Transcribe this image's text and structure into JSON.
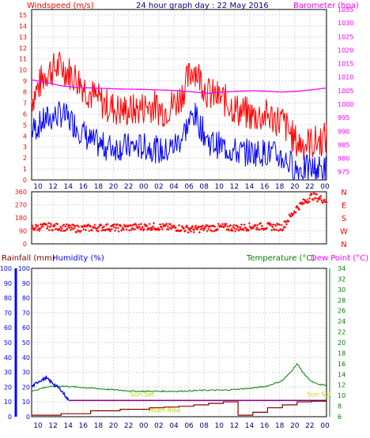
{
  "header": {
    "title": "24 hour graph day : 22 May 2016",
    "left_label": "Windspeed (m/s)",
    "right_label": "Barometer (hpa)"
  },
  "colors": {
    "wind": "#ff0000",
    "gust_fill": "#ff0000",
    "wind_avg": "#0000ff",
    "baro": "#ff00ff",
    "dir": "#ff0000",
    "title": "#000080",
    "rain": "#800000",
    "humidity": "#0000ff",
    "temp": "#008000",
    "dew": "#ff00ff",
    "sun": "#800080",
    "sunlabel": "#cccc00"
  },
  "chart_data": [
    {
      "type": "line",
      "title": "24 hour graph day : 22 May 2016",
      "x_ticks": [
        "10",
        "12",
        "14",
        "16",
        "18",
        "20",
        "22",
        "00",
        "02",
        "04",
        "06",
        "08",
        "10",
        "12",
        "14",
        "16",
        "18",
        "20",
        "22",
        "00"
      ],
      "y_left": {
        "label": "Windspeed (m/s)",
        "range": [
          0,
          15.5
        ],
        "ticks": [
          0,
          1,
          2,
          3,
          4,
          5,
          6,
          7,
          8,
          9,
          10,
          11,
          12,
          13,
          14,
          15
        ]
      },
      "y_right": {
        "label": "Barometer (hpa)",
        "range": [
          972,
          1035
        ],
        "ticks": [
          975,
          980,
          985,
          990,
          995,
          1000,
          1005,
          1010,
          1015,
          1020,
          1025,
          1030,
          1035
        ]
      },
      "series": [
        {
          "name": "Windspeed (m/s)",
          "x": [
            0,
            2,
            4,
            6,
            8,
            10,
            12,
            14,
            16,
            18,
            20,
            22,
            24,
            26,
            28,
            30,
            32,
            34,
            36,
            38,
            40
          ],
          "values": [
            7.0,
            9.5,
            10.0,
            9.0,
            7.5,
            6.5,
            6.0,
            6.0,
            6.5,
            6.0,
            7.0,
            10.0,
            7.5,
            7.0,
            6.0,
            5.5,
            5.5,
            5.0,
            3.0,
            3.0,
            3.5
          ]
        },
        {
          "name": "Average",
          "x": [
            0,
            2,
            4,
            6,
            8,
            10,
            12,
            14,
            16,
            18,
            20,
            22,
            24,
            26,
            28,
            30,
            32,
            34,
            36,
            38,
            40
          ],
          "values": [
            4.5,
            5.5,
            6.0,
            5.0,
            3.5,
            3.0,
            3.0,
            3.0,
            3.0,
            2.5,
            3.5,
            6.0,
            3.5,
            3.0,
            2.5,
            2.5,
            2.5,
            2.0,
            1.0,
            1.0,
            1.0
          ]
        },
        {
          "name": "Barometer (hpa)",
          "x": [
            0,
            2,
            4,
            6,
            8,
            10,
            12,
            14,
            16,
            18,
            20,
            22,
            24,
            26,
            28,
            30,
            32,
            34,
            36,
            38,
            40
          ],
          "values": [
            1009.0,
            1008.0,
            1006.8,
            1006.2,
            1006.0,
            1005.8,
            1005.6,
            1005.5,
            1005.4,
            1005.2,
            1005.0,
            1004.5,
            1004.0,
            1004.5,
            1004.8,
            1005.0,
            1004.8,
            1004.5,
            1004.8,
            1005.3,
            1006.0
          ]
        }
      ]
    },
    {
      "type": "scatter",
      "title": "",
      "y_left": {
        "range": [
          0,
          360
        ],
        "ticks": [
          0,
          90,
          180,
          270,
          360
        ]
      },
      "y_right_labels": [
        "N",
        "W",
        "S",
        "E",
        "N"
      ],
      "series": [
        {
          "name": "Wind direction",
          "x": [
            0,
            2,
            4,
            6,
            8,
            10,
            12,
            14,
            16,
            18,
            20,
            22,
            24,
            26,
            28,
            30,
            32,
            34,
            36,
            38,
            40
          ],
          "values": [
            110,
            120,
            115,
            105,
            110,
            115,
            110,
            115,
            120,
            115,
            110,
            100,
            110,
            115,
            110,
            120,
            120,
            115,
            250,
            330,
            300
          ]
        }
      ]
    },
    {
      "type": "line",
      "title": "",
      "y_left": {
        "label": "Rainfall (mm)",
        "range": [
          0,
          100
        ],
        "ticks": [
          0,
          10,
          20,
          30,
          40,
          50,
          60,
          70,
          80,
          90,
          100
        ]
      },
      "y_left2": {
        "label": "Humidity (%)",
        "range": [
          0,
          100
        ],
        "ticks": [
          0,
          10,
          20,
          30,
          40,
          50,
          60,
          70,
          80,
          90,
          100
        ]
      },
      "y_right": {
        "label": "Temperature (°C)",
        "label2": "Dew Point (°C)",
        "range": [
          6,
          34
        ],
        "ticks": [
          6,
          8,
          10,
          12,
          14,
          16,
          18,
          20,
          22,
          24,
          26,
          28,
          30,
          32,
          34
        ]
      },
      "annotations": [
        "Sun Set",
        "Moon Rise",
        "Sun Set"
      ],
      "series": [
        {
          "name": "Temperature (°C)",
          "x": [
            0,
            2,
            4,
            6,
            8,
            10,
            12,
            14,
            16,
            18,
            20,
            22,
            24,
            26,
            28,
            30,
            32,
            34,
            35,
            36,
            37,
            38,
            39,
            40
          ],
          "values": [
            10.8,
            11.6,
            11.8,
            11.6,
            11.4,
            11.2,
            11.0,
            10.8,
            10.8,
            10.8,
            10.8,
            10.9,
            11.0,
            11.0,
            11.2,
            11.4,
            11.8,
            12.8,
            14.2,
            16.0,
            14.0,
            12.6,
            12.0,
            12.0
          ]
        },
        {
          "name": "Humidity (%)",
          "x": [
            0,
            1,
            2,
            3,
            4,
            5
          ],
          "values": [
            20,
            24,
            26,
            22,
            18,
            11
          ]
        },
        {
          "name": "Rainfall (mm)",
          "x": [
            0,
            4,
            8,
            12,
            16,
            18,
            20,
            22,
            24,
            26,
            28,
            30,
            32,
            34,
            36,
            38,
            40
          ],
          "values": [
            1,
            2,
            4,
            5,
            6,
            6.5,
            7,
            8,
            9,
            10,
            1,
            3,
            6,
            8,
            10,
            10.5,
            11
          ]
        }
      ]
    }
  ]
}
